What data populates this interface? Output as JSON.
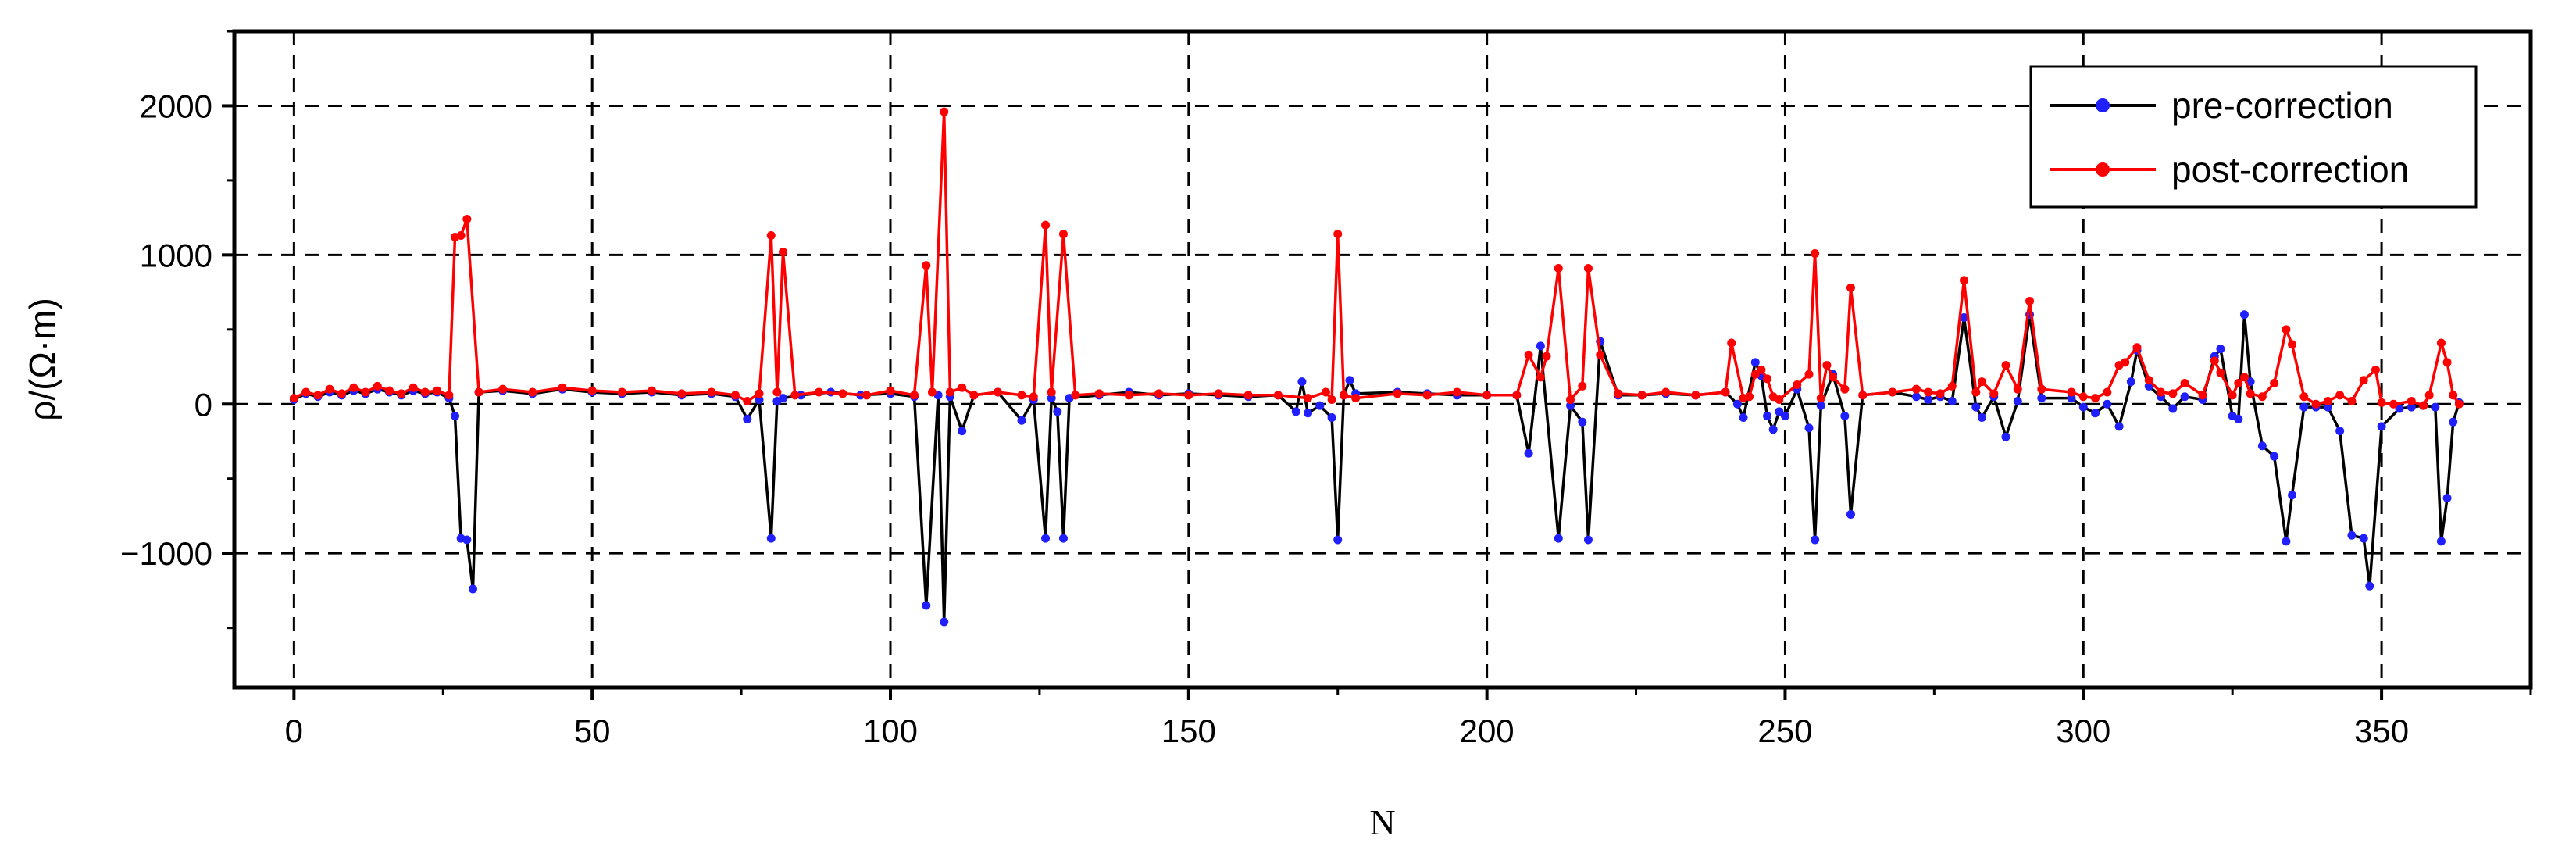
{
  "chart_data": {
    "type": "line",
    "title": "",
    "xlabel": "N",
    "ylabel": "ρ/(Ω·m)",
    "xlim": [
      -10,
      375
    ],
    "ylim": [
      -1900,
      2500
    ],
    "xticks": [
      0,
      50,
      100,
      150,
      200,
      250,
      300,
      350
    ],
    "yticks": [
      -1000,
      0,
      1000,
      2000
    ],
    "x_tick_labels": [
      "0",
      "50",
      "100",
      "150",
      "200",
      "250",
      "300",
      "350"
    ],
    "y_tick_labels": [
      "−1000",
      "0",
      "1000",
      "2000"
    ],
    "grid": true,
    "legend_position": "top-right",
    "series": [
      {
        "name": "pre-correction",
        "line_color": "#000000",
        "marker_color": "#1f1fff",
        "points": [
          [
            0,
            30
          ],
          [
            2,
            70
          ],
          [
            4,
            50
          ],
          [
            6,
            80
          ],
          [
            8,
            60
          ],
          [
            10,
            90
          ],
          [
            12,
            70
          ],
          [
            14,
            100
          ],
          [
            16,
            80
          ],
          [
            18,
            60
          ],
          [
            20,
            90
          ],
          [
            22,
            70
          ],
          [
            24,
            80
          ],
          [
            26,
            40
          ],
          [
            27,
            -80
          ],
          [
            28,
            -900
          ],
          [
            29,
            -910
          ],
          [
            30,
            -1240
          ],
          [
            31,
            80
          ],
          [
            35,
            90
          ],
          [
            40,
            70
          ],
          [
            45,
            100
          ],
          [
            50,
            80
          ],
          [
            55,
            70
          ],
          [
            60,
            80
          ],
          [
            65,
            60
          ],
          [
            70,
            70
          ],
          [
            74,
            50
          ],
          [
            76,
            -100
          ],
          [
            78,
            30
          ],
          [
            80,
            -900
          ],
          [
            81,
            20
          ],
          [
            82,
            40
          ],
          [
            85,
            60
          ],
          [
            90,
            80
          ],
          [
            95,
            60
          ],
          [
            100,
            70
          ],
          [
            104,
            50
          ],
          [
            106,
            -1350
          ],
          [
            108,
            60
          ],
          [
            109,
            -1460
          ],
          [
            110,
            50
          ],
          [
            112,
            -180
          ],
          [
            114,
            60
          ],
          [
            118,
            80
          ],
          [
            122,
            -110
          ],
          [
            124,
            30
          ],
          [
            126,
            -900
          ],
          [
            127,
            40
          ],
          [
            128,
            -50
          ],
          [
            129,
            -900
          ],
          [
            130,
            40
          ],
          [
            135,
            60
          ],
          [
            140,
            80
          ],
          [
            145,
            60
          ],
          [
            150,
            70
          ],
          [
            155,
            60
          ],
          [
            160,
            50
          ],
          [
            165,
            60
          ],
          [
            168,
            -50
          ],
          [
            169,
            150
          ],
          [
            170,
            -60
          ],
          [
            172,
            -10
          ],
          [
            174,
            -90
          ],
          [
            175,
            -910
          ],
          [
            176,
            60
          ],
          [
            177,
            160
          ],
          [
            178,
            70
          ],
          [
            185,
            80
          ],
          [
            190,
            70
          ],
          [
            195,
            60
          ],
          [
            200,
            60
          ],
          [
            205,
            60
          ],
          [
            207,
            -330
          ],
          [
            209,
            390
          ],
          [
            212,
            -900
          ],
          [
            214,
            -10
          ],
          [
            216,
            -120
          ],
          [
            217,
            -910
          ],
          [
            219,
            420
          ],
          [
            222,
            60
          ],
          [
            226,
            60
          ],
          [
            230,
            70
          ],
          [
            235,
            60
          ],
          [
            240,
            80
          ],
          [
            242,
            0
          ],
          [
            243,
            -90
          ],
          [
            245,
            280
          ],
          [
            246,
            190
          ],
          [
            247,
            -80
          ],
          [
            248,
            -170
          ],
          [
            249,
            -50
          ],
          [
            250,
            -80
          ],
          [
            252,
            100
          ],
          [
            254,
            -160
          ],
          [
            255,
            -910
          ],
          [
            256,
            -10
          ],
          [
            258,
            200
          ],
          [
            260,
            -80
          ],
          [
            261,
            -740
          ],
          [
            263,
            60
          ],
          [
            268,
            80
          ],
          [
            272,
            50
          ],
          [
            274,
            30
          ],
          [
            276,
            50
          ],
          [
            278,
            20
          ],
          [
            280,
            580
          ],
          [
            282,
            -20
          ],
          [
            283,
            -90
          ],
          [
            285,
            50
          ],
          [
            287,
            -220
          ],
          [
            289,
            20
          ],
          [
            291,
            600
          ],
          [
            293,
            40
          ],
          [
            298,
            40
          ],
          [
            300,
            -20
          ],
          [
            302,
            -60
          ],
          [
            304,
            0
          ],
          [
            306,
            -150
          ],
          [
            308,
            150
          ],
          [
            309,
            360
          ],
          [
            311,
            120
          ],
          [
            313,
            50
          ],
          [
            315,
            -30
          ],
          [
            317,
            50
          ],
          [
            320,
            30
          ],
          [
            322,
            320
          ],
          [
            323,
            370
          ],
          [
            325,
            -80
          ],
          [
            326,
            -100
          ],
          [
            327,
            600
          ],
          [
            328,
            150
          ],
          [
            330,
            -280
          ],
          [
            332,
            -350
          ],
          [
            334,
            -920
          ],
          [
            335,
            -610
          ],
          [
            337,
            -20
          ],
          [
            339,
            -20
          ],
          [
            341,
            -20
          ],
          [
            343,
            -180
          ],
          [
            345,
            -880
          ],
          [
            347,
            -900
          ],
          [
            348,
            -1220
          ],
          [
            350,
            -150
          ],
          [
            353,
            -30
          ],
          [
            355,
            -20
          ],
          [
            357,
            -10
          ],
          [
            359,
            -20
          ],
          [
            360,
            -920
          ],
          [
            361,
            -630
          ],
          [
            362,
            -120
          ],
          [
            363,
            10
          ]
        ]
      },
      {
        "name": "post-correction",
        "line_color": "#ff0000",
        "marker_color": "#ff0000",
        "points": [
          [
            0,
            40
          ],
          [
            2,
            80
          ],
          [
            4,
            60
          ],
          [
            6,
            100
          ],
          [
            8,
            70
          ],
          [
            10,
            110
          ],
          [
            12,
            80
          ],
          [
            14,
            120
          ],
          [
            16,
            90
          ],
          [
            18,
            70
          ],
          [
            20,
            110
          ],
          [
            22,
            80
          ],
          [
            24,
            90
          ],
          [
            26,
            60
          ],
          [
            27,
            1120
          ],
          [
            28,
            1130
          ],
          [
            29,
            1240
          ],
          [
            31,
            80
          ],
          [
            35,
            100
          ],
          [
            40,
            80
          ],
          [
            45,
            110
          ],
          [
            50,
            90
          ],
          [
            55,
            80
          ],
          [
            60,
            90
          ],
          [
            65,
            70
          ],
          [
            70,
            80
          ],
          [
            74,
            60
          ],
          [
            76,
            20
          ],
          [
            78,
            70
          ],
          [
            80,
            1130
          ],
          [
            81,
            80
          ],
          [
            82,
            1020
          ],
          [
            84,
            60
          ],
          [
            88,
            80
          ],
          [
            92,
            70
          ],
          [
            96,
            60
          ],
          [
            100,
            90
          ],
          [
            104,
            60
          ],
          [
            106,
            930
          ],
          [
            107,
            80
          ],
          [
            109,
            1960
          ],
          [
            110,
            80
          ],
          [
            112,
            110
          ],
          [
            114,
            60
          ],
          [
            118,
            80
          ],
          [
            122,
            60
          ],
          [
            124,
            50
          ],
          [
            126,
            1200
          ],
          [
            127,
            80
          ],
          [
            129,
            1140
          ],
          [
            131,
            60
          ],
          [
            135,
            70
          ],
          [
            140,
            60
          ],
          [
            145,
            70
          ],
          [
            150,
            60
          ],
          [
            155,
            70
          ],
          [
            160,
            60
          ],
          [
            165,
            60
          ],
          [
            170,
            40
          ],
          [
            173,
            80
          ],
          [
            174,
            30
          ],
          [
            175,
            1140
          ],
          [
            176,
            60
          ],
          [
            178,
            40
          ],
          [
            185,
            70
          ],
          [
            190,
            60
          ],
          [
            195,
            80
          ],
          [
            200,
            60
          ],
          [
            205,
            60
          ],
          [
            207,
            330
          ],
          [
            209,
            180
          ],
          [
            210,
            320
          ],
          [
            212,
            910
          ],
          [
            214,
            30
          ],
          [
            216,
            120
          ],
          [
            217,
            910
          ],
          [
            219,
            330
          ],
          [
            222,
            70
          ],
          [
            226,
            60
          ],
          [
            230,
            80
          ],
          [
            235,
            60
          ],
          [
            240,
            80
          ],
          [
            241,
            410
          ],
          [
            243,
            40
          ],
          [
            244,
            50
          ],
          [
            245,
            200
          ],
          [
            246,
            230
          ],
          [
            247,
            170
          ],
          [
            248,
            50
          ],
          [
            249,
            30
          ],
          [
            252,
            130
          ],
          [
            254,
            200
          ],
          [
            255,
            1010
          ],
          [
            256,
            40
          ],
          [
            257,
            260
          ],
          [
            258,
            180
          ],
          [
            260,
            100
          ],
          [
            261,
            780
          ],
          [
            263,
            60
          ],
          [
            268,
            80
          ],
          [
            272,
            100
          ],
          [
            274,
            80
          ],
          [
            276,
            70
          ],
          [
            278,
            120
          ],
          [
            280,
            830
          ],
          [
            282,
            80
          ],
          [
            283,
            150
          ],
          [
            285,
            70
          ],
          [
            287,
            260
          ],
          [
            289,
            100
          ],
          [
            291,
            690
          ],
          [
            293,
            100
          ],
          [
            298,
            80
          ],
          [
            300,
            50
          ],
          [
            302,
            40
          ],
          [
            304,
            80
          ],
          [
            306,
            260
          ],
          [
            307,
            280
          ],
          [
            309,
            380
          ],
          [
            311,
            160
          ],
          [
            313,
            80
          ],
          [
            315,
            70
          ],
          [
            317,
            140
          ],
          [
            320,
            60
          ],
          [
            322,
            290
          ],
          [
            323,
            210
          ],
          [
            325,
            60
          ],
          [
            326,
            140
          ],
          [
            327,
            180
          ],
          [
            328,
            70
          ],
          [
            330,
            50
          ],
          [
            332,
            140
          ],
          [
            334,
            500
          ],
          [
            335,
            400
          ],
          [
            337,
            50
          ],
          [
            339,
            0
          ],
          [
            341,
            20
          ],
          [
            343,
            60
          ],
          [
            345,
            20
          ],
          [
            347,
            160
          ],
          [
            349,
            230
          ],
          [
            350,
            10
          ],
          [
            352,
            0
          ],
          [
            355,
            20
          ],
          [
            357,
            -10
          ],
          [
            358,
            60
          ],
          [
            360,
            410
          ],
          [
            361,
            280
          ],
          [
            362,
            60
          ],
          [
            363,
            0
          ]
        ]
      }
    ]
  }
}
